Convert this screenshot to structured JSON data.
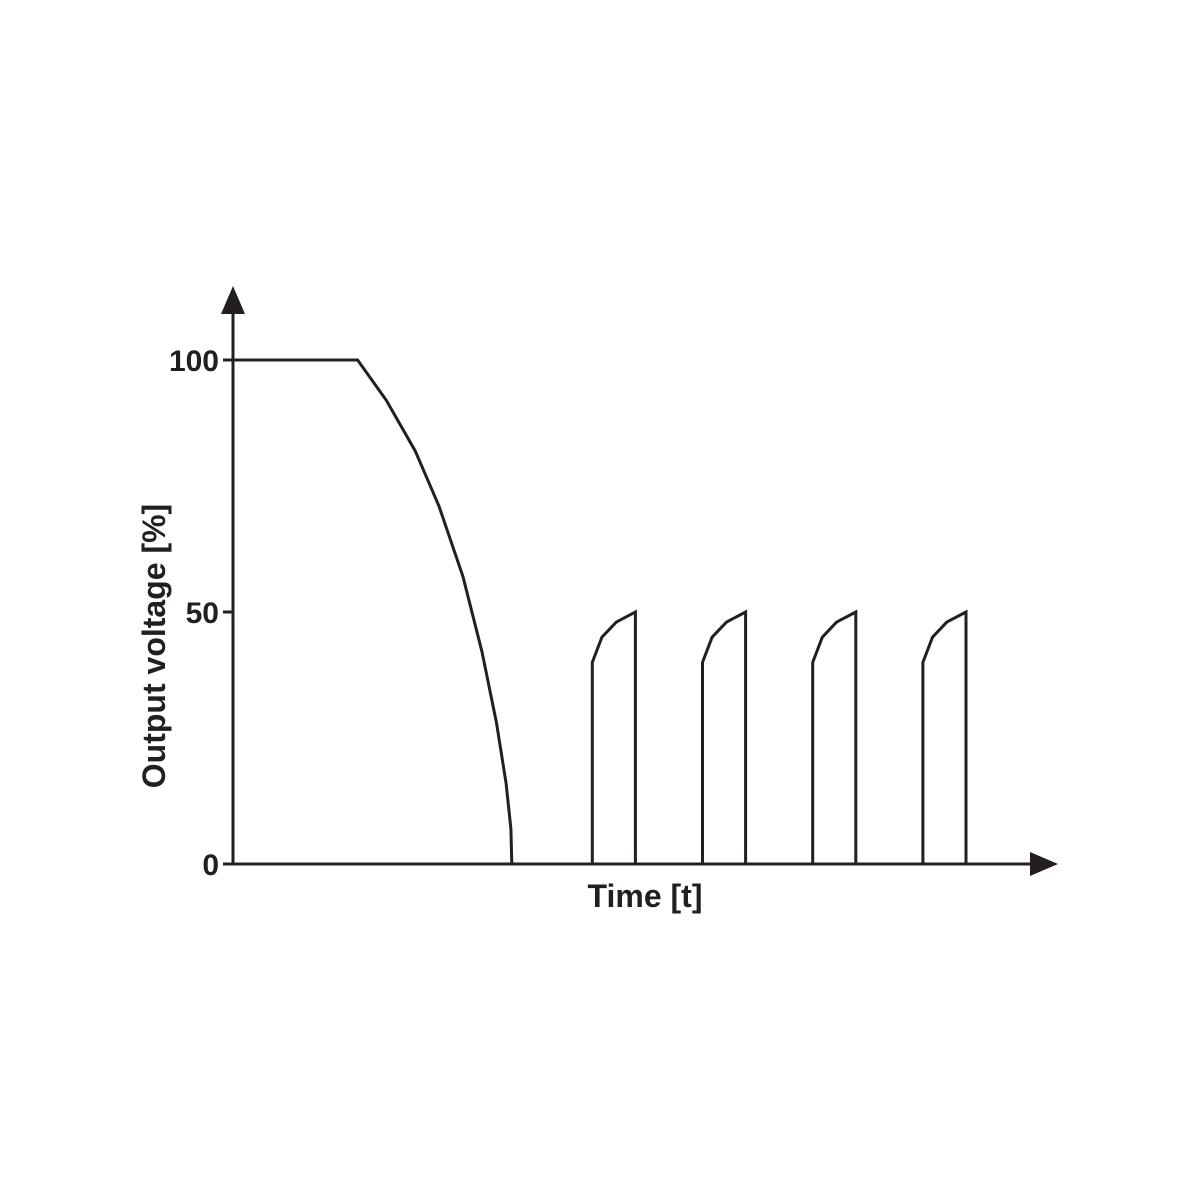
{
  "chart_data": {
    "type": "line",
    "title": "",
    "xlabel": "Time [t]",
    "ylabel": "Output voltage [%]",
    "ylim": [
      0,
      100
    ],
    "xlim": [
      0,
      16.5
    ],
    "yticks": [
      {
        "value": 0,
        "label": "0"
      },
      {
        "value": 50,
        "label": "50"
      },
      {
        "value": 100,
        "label": "100"
      }
    ],
    "grid": false,
    "legend": "none",
    "line_color": "#231f20",
    "series": [
      {
        "points": [
          [
            0,
            100
          ],
          [
            2.6,
            100
          ],
          [
            3.2,
            92
          ],
          [
            3.8,
            82
          ],
          [
            4.3,
            71
          ],
          [
            4.8,
            57
          ],
          [
            5.2,
            42
          ],
          [
            5.5,
            28
          ],
          [
            5.7,
            16
          ],
          [
            5.8,
            7
          ],
          [
            5.82,
            0
          ],
          [
            7.5,
            0
          ],
          [
            7.5,
            40
          ],
          [
            7.7,
            45
          ],
          [
            8.0,
            48
          ],
          [
            8.4,
            50
          ],
          [
            8.4,
            0
          ],
          [
            9.8,
            0
          ],
          [
            9.8,
            40
          ],
          [
            10.0,
            45
          ],
          [
            10.3,
            48
          ],
          [
            10.7,
            50
          ],
          [
            10.7,
            0
          ],
          [
            12.1,
            0
          ],
          [
            12.1,
            40
          ],
          [
            12.3,
            45
          ],
          [
            12.6,
            48
          ],
          [
            13.0,
            50
          ],
          [
            13.0,
            0
          ],
          [
            14.4,
            0
          ],
          [
            14.4,
            40
          ],
          [
            14.6,
            45
          ],
          [
            14.9,
            48
          ],
          [
            15.3,
            50
          ],
          [
            15.3,
            0
          ],
          [
            16.0,
            0
          ]
        ]
      }
    ]
  }
}
